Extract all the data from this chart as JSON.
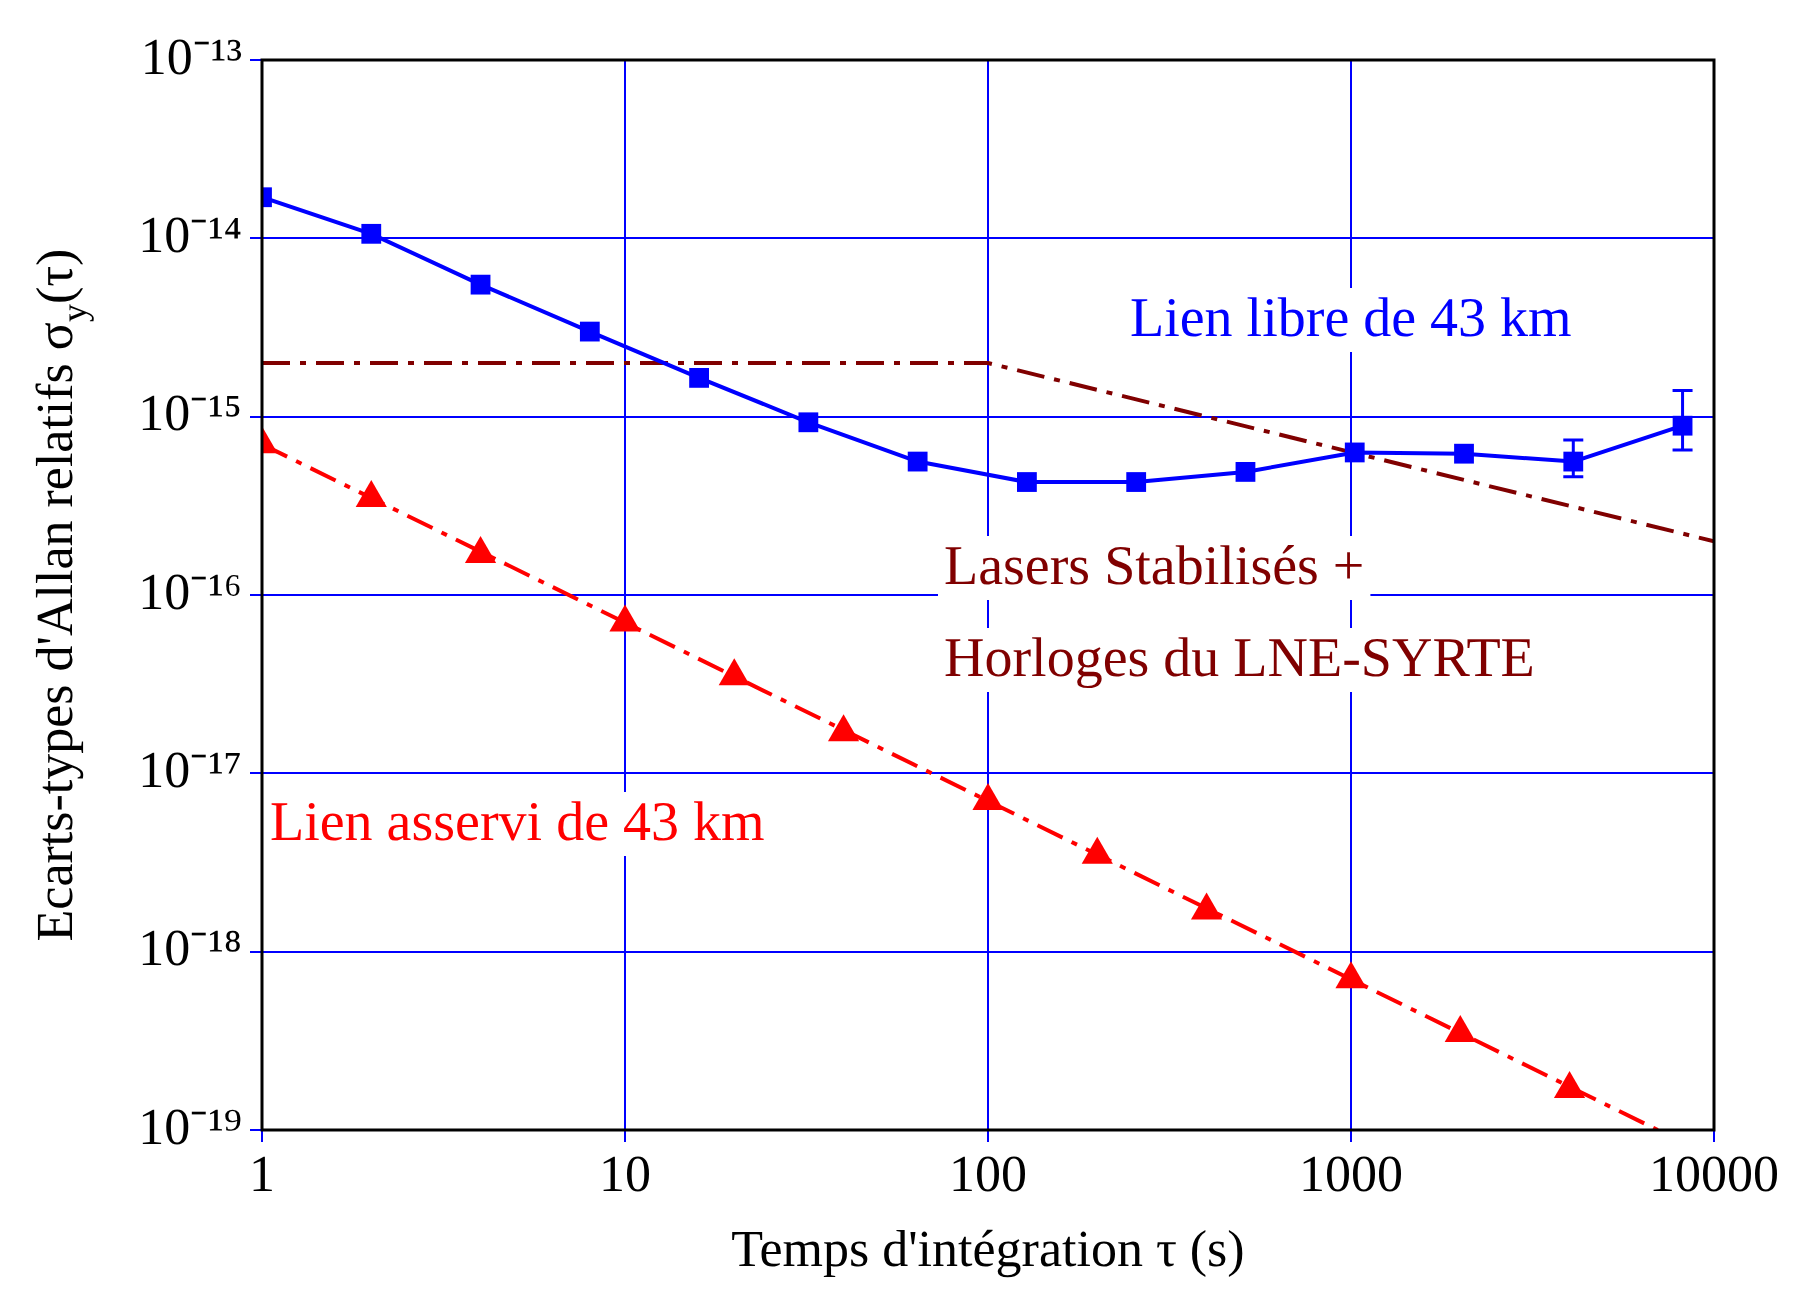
{
  "chart_data": {
    "type": "line",
    "xlabel": "Temps d'intégration τ (s)",
    "ylabel": "Ecarts-types d'Allan relatifs σ$_{y}$(τ)",
    "log": "xy",
    "grid": true,
    "legend": false,
    "xlim": [
      1,
      10000
    ],
    "xticks": [
      1,
      10,
      100,
      1000,
      10000
    ],
    "ylim": [
      1e-19,
      1e-13
    ],
    "yticks": [
      {
        "value": 1e-19,
        "label": "10⁻¹⁹"
      },
      {
        "value": 1e-18,
        "label": "10⁻¹⁸"
      },
      {
        "value": 1e-17,
        "label": "10⁻¹⁷"
      },
      {
        "value": 1e-16,
        "label": "10⁻¹⁶"
      },
      {
        "value": 1e-15,
        "label": "10⁻¹⁵"
      },
      {
        "value": 1e-14,
        "label": "10⁻¹⁴"
      },
      {
        "value": 1e-13,
        "label": "10⁻¹³"
      }
    ],
    "series": [
      {
        "name": "Lien libre de 43 km",
        "color": "#0000ff",
        "marker": "square",
        "line_style": "solid",
        "x": [
          1,
          2,
          4,
          8,
          16,
          32,
          64,
          128,
          256,
          512,
          1024,
          2048,
          4096,
          8192
        ],
        "values": [
          1.7e-14,
          1.06e-14,
          5.5e-15,
          3e-15,
          1.65e-15,
          9.3e-16,
          5.6e-16,
          4.3e-16,
          4.3e-16,
          4.9e-16,
          6.3e-16,
          6.2e-16,
          5.6e-16,
          8.9e-16
        ],
        "errors": [
          null,
          null,
          null,
          null,
          null,
          null,
          null,
          null,
          null,
          null,
          null,
          null,
          [
            4.6e-16,
            7.4e-16
          ],
          [
            6.5e-16,
            1.4e-15
          ]
        ]
      },
      {
        "name": "Lasers Stabilisés + Horloges du LNE-SYRTE",
        "color": "#800000",
        "marker": "none",
        "line_style": "dashed",
        "x": [
          1,
          100,
          10000
        ],
        "values": [
          2e-15,
          2e-15,
          2e-16
        ]
      },
      {
        "name": "Lien asservi de 43 km",
        "type": "scatter",
        "color": "#ff0000",
        "marker": "triangle",
        "x": [
          1,
          2,
          4,
          10,
          20,
          40,
          100,
          200,
          400,
          1000,
          2000,
          4000
        ],
        "values": [
          7e-16,
          3.5e-16,
          1.7e-16,
          7e-17,
          3.5e-17,
          1.7e-17,
          7e-18,
          3.5e-18,
          1.7e-18,
          7e-19,
          3.5e-19,
          1.7e-19
        ]
      },
      {
        "color": "#ff0000",
        "marker": "none",
        "line_style": "dashed",
        "x": [
          1,
          7000
        ],
        "values": [
          7e-16,
          1e-19
        ]
      }
    ]
  }
}
